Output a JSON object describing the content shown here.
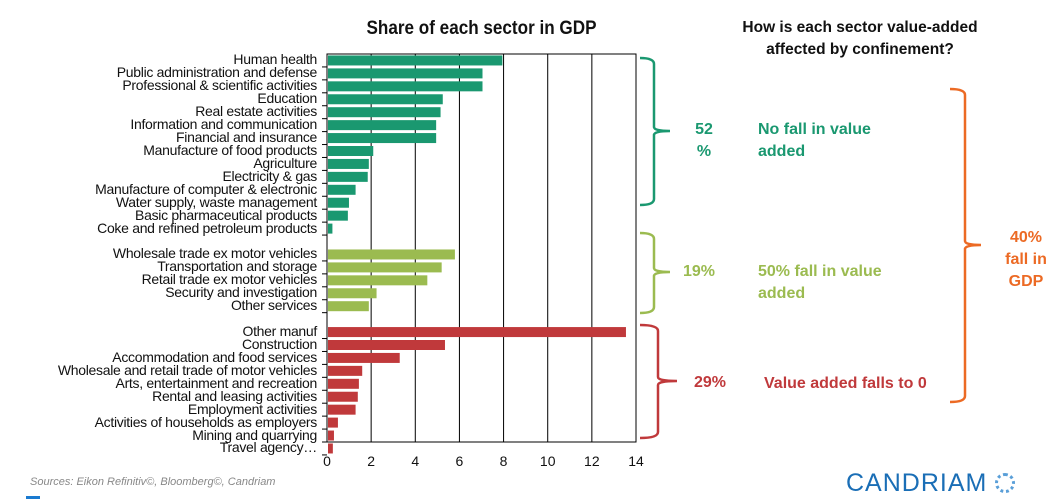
{
  "chart_data": {
    "type": "bar",
    "orientation": "horizontal",
    "title": "Share of each sector in GDP",
    "xlim": [
      0,
      14
    ],
    "xticks": [
      "0",
      "2",
      "4",
      "6",
      "8",
      "10",
      "12",
      "14"
    ],
    "grid": true,
    "groups": [
      {
        "name": "No fall in value added",
        "share": "52 %",
        "color": "#1a9870",
        "categories": [
          "Human health",
          "Public administration and defense",
          "Professional & scientific activities",
          "Education",
          "Real estate activities",
          "Information and communication",
          "Financial and insurance",
          "Manufacture of food products",
          "Agriculture",
          "Electricity & gas",
          "Manufacture of computer & electronic",
          "Water supply, waste management",
          "Basic pharmaceutical products",
          "Coke and refined petroleum products"
        ],
        "values": [
          7.9,
          7.0,
          7.0,
          5.2,
          5.1,
          4.9,
          4.9,
          2.05,
          1.85,
          1.8,
          1.25,
          0.95,
          0.9,
          0.2
        ]
      },
      {
        "name": "50% fall in value added",
        "share": "19%",
        "color": "#9bbb50",
        "categories": [
          "Wholesale trade ex motor vehicles",
          "Transportation and storage",
          "Retail trade ex motor vehicles",
          "Security and investigation",
          "Other services"
        ],
        "values": [
          5.75,
          5.15,
          4.5,
          2.2,
          1.85
        ]
      },
      {
        "name": "Value added falls to 0",
        "share": "29%",
        "color": "#c0393b",
        "categories": [
          "Other manuf",
          "Construction",
          "Accommodation and food services",
          "Wholesale and retail trade of motor vehicles",
          "Arts, entertainment and recreation",
          "Rental and leasing activities",
          "Employment activities",
          "Activities of households as employers",
          "Mining and quarrying",
          "Travel agency…"
        ],
        "values": [
          13.5,
          5.3,
          3.25,
          1.55,
          1.4,
          1.35,
          1.25,
          0.45,
          0.27,
          0.22
        ]
      }
    ]
  },
  "question": "How is each sector value-added affected by confinement?",
  "annotations": {
    "green_pct": "52 %",
    "green_text": "No fall in value added",
    "lime_pct": "19%",
    "lime_text": "50% fall in value added",
    "red_pct": "29%",
    "red_text": "Value added falls to 0",
    "total": "40% fall in GDP"
  },
  "colors": {
    "green": "#1a9870",
    "lime": "#9bbb50",
    "red": "#c0393b",
    "orange": "#ec6a24",
    "brand": "#1a6eb6"
  },
  "footer": {
    "source": "Sources: Eikon Refinitiv©, Bloomberg©, Candriam",
    "logo": "CANDRIAM"
  }
}
